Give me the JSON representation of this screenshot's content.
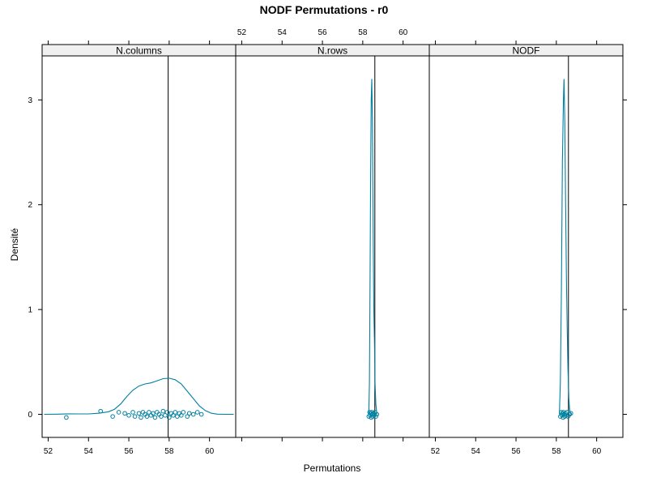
{
  "chart_data": {
    "type": "density",
    "title": "NODF Permutations - r0",
    "xlabel": "Permutations",
    "ylabel": "Densité",
    "xlim": [
      51.7,
      61.3
    ],
    "ylim": [
      -0.22,
      3.42
    ],
    "x_ticks": [
      52,
      54,
      56,
      58,
      60
    ],
    "x_tick_labels": [
      "52",
      "54",
      "56",
      "58",
      "60"
    ],
    "y_ticks": [
      0,
      1,
      2,
      3
    ],
    "y_tick_labels": [
      "0",
      "1",
      "2",
      "3"
    ],
    "x_tick_positions": {
      "bottom": [
        0,
        2
      ],
      "top": [
        1
      ]
    },
    "y_tick_labels_side": "left",
    "grid": false,
    "legend": "none",
    "colors": {
      "series": "#0080a0",
      "reference": "#000000",
      "strip": "#f0f0f0"
    },
    "panels": [
      {
        "name": "N.columns",
        "observed": 57.95,
        "density": [
          [
            51.8,
            0.0
          ],
          [
            52.5,
            0.002
          ],
          [
            53.0,
            0.005
          ],
          [
            53.5,
            0.004
          ],
          [
            54.0,
            0.004
          ],
          [
            54.5,
            0.01
          ],
          [
            55.0,
            0.025
          ],
          [
            55.3,
            0.05
          ],
          [
            55.6,
            0.1
          ],
          [
            55.9,
            0.17
          ],
          [
            56.2,
            0.23
          ],
          [
            56.5,
            0.27
          ],
          [
            56.8,
            0.29
          ],
          [
            57.1,
            0.3
          ],
          [
            57.4,
            0.32
          ],
          [
            57.7,
            0.34
          ],
          [
            58.0,
            0.345
          ],
          [
            58.3,
            0.33
          ],
          [
            58.6,
            0.29
          ],
          [
            58.9,
            0.22
          ],
          [
            59.2,
            0.15
          ],
          [
            59.5,
            0.08
          ],
          [
            59.8,
            0.035
          ],
          [
            60.1,
            0.01
          ],
          [
            60.4,
            0.002
          ],
          [
            60.8,
            0.0
          ],
          [
            61.2,
            0.0
          ]
        ],
        "points": [
          [
            52.9,
            -0.03
          ],
          [
            54.6,
            0.03
          ],
          [
            55.2,
            -0.02
          ],
          [
            55.5,
            0.02
          ],
          [
            55.8,
            0.01
          ],
          [
            56.0,
            -0.01
          ],
          [
            56.2,
            0.02
          ],
          [
            56.3,
            -0.02
          ],
          [
            56.5,
            0.01
          ],
          [
            56.6,
            -0.03
          ],
          [
            56.7,
            0.02
          ],
          [
            56.8,
            0.0
          ],
          [
            56.9,
            -0.02
          ],
          [
            57.0,
            0.02
          ],
          [
            57.1,
            -0.01
          ],
          [
            57.2,
            0.01
          ],
          [
            57.3,
            -0.03
          ],
          [
            57.4,
            0.02
          ],
          [
            57.5,
            0.0
          ],
          [
            57.6,
            -0.02
          ],
          [
            57.7,
            0.03
          ],
          [
            57.8,
            -0.01
          ],
          [
            57.9,
            0.02
          ],
          [
            58.0,
            -0.03
          ],
          [
            58.1,
            0.01
          ],
          [
            58.2,
            -0.01
          ],
          [
            58.3,
            0.02
          ],
          [
            58.4,
            -0.02
          ],
          [
            58.5,
            0.01
          ],
          [
            58.6,
            -0.01
          ],
          [
            58.7,
            0.02
          ],
          [
            58.9,
            -0.02
          ],
          [
            59.0,
            0.01
          ],
          [
            59.2,
            0.0
          ],
          [
            59.4,
            0.02
          ],
          [
            59.6,
            0.0
          ]
        ]
      },
      {
        "name": "N.rows",
        "observed": 58.6,
        "density": [
          [
            58.3,
            0.0
          ],
          [
            58.33,
            0.3
          ],
          [
            58.36,
            1.2
          ],
          [
            58.39,
            2.3
          ],
          [
            58.42,
            3.0
          ],
          [
            58.45,
            3.2
          ],
          [
            58.48,
            2.8
          ],
          [
            58.5,
            2.2
          ],
          [
            58.52,
            1.6
          ],
          [
            58.55,
            1.0
          ],
          [
            58.58,
            0.7
          ],
          [
            58.61,
            0.3
          ],
          [
            58.65,
            0.1
          ],
          [
            58.7,
            0.0
          ]
        ],
        "points": [
          [
            58.3,
            -0.02
          ],
          [
            58.34,
            0.02
          ],
          [
            58.37,
            -0.01
          ],
          [
            58.4,
            0.01
          ],
          [
            58.42,
            -0.03
          ],
          [
            58.45,
            0.02
          ],
          [
            58.48,
            0.0
          ],
          [
            58.5,
            -0.02
          ],
          [
            58.53,
            0.01
          ],
          [
            58.56,
            -0.01
          ],
          [
            58.6,
            0.02
          ],
          [
            58.65,
            -0.02
          ],
          [
            58.7,
            0.0
          ]
        ]
      },
      {
        "name": "NODF",
        "observed": 58.6,
        "density": [
          [
            58.15,
            0.0
          ],
          [
            58.2,
            0.3
          ],
          [
            58.25,
            1.2
          ],
          [
            58.3,
            2.4
          ],
          [
            58.35,
            3.0
          ],
          [
            58.38,
            3.2
          ],
          [
            58.42,
            2.8
          ],
          [
            58.46,
            2.0
          ],
          [
            58.5,
            1.3
          ],
          [
            58.54,
            0.8
          ],
          [
            58.58,
            0.4
          ],
          [
            58.62,
            0.15
          ],
          [
            58.66,
            0.04
          ],
          [
            58.72,
            0.0
          ]
        ],
        "points": [
          [
            58.2,
            -0.02
          ],
          [
            58.24,
            0.02
          ],
          [
            58.28,
            -0.01
          ],
          [
            58.3,
            0.01
          ],
          [
            58.33,
            -0.03
          ],
          [
            58.36,
            0.02
          ],
          [
            58.39,
            0.0
          ],
          [
            58.42,
            -0.02
          ],
          [
            58.45,
            0.01
          ],
          [
            58.48,
            -0.01
          ],
          [
            58.52,
            0.02
          ],
          [
            58.58,
            -0.02
          ],
          [
            58.66,
            0.0
          ],
          [
            58.72,
            0.01
          ]
        ]
      }
    ]
  }
}
